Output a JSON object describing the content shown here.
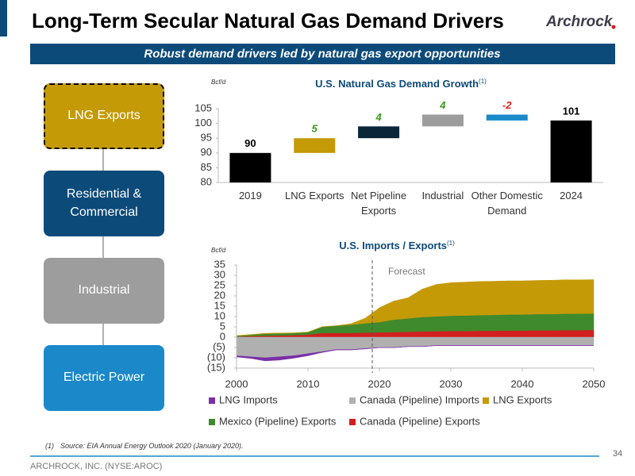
{
  "header": {
    "title": "Long-Term Secular Natural Gas Demand Drivers",
    "logo": "Archrock",
    "subtitle": "Robust demand drivers led by natural gas export opportunities"
  },
  "drivers": [
    {
      "label": "LNG Exports",
      "color": "#c49a06",
      "highlighted": true
    },
    {
      "label": "Residential & Commercial",
      "color": "#0c4a7a"
    },
    {
      "label": "Industrial",
      "color": "#9d9d9d"
    },
    {
      "label": "Electric Power",
      "color": "#1a88c9"
    }
  ],
  "chart_data": [
    {
      "type": "waterfall",
      "title": "U.S. Natural Gas Demand Growth",
      "title_note": "(1)",
      "y_label": "Bcf/d",
      "categories": [
        "2019",
        "LNG Exports",
        "Net Pipeline Exports",
        "Industrial",
        "Other Domestic Demand",
        "2024"
      ],
      "values": [
        90,
        5,
        4,
        4,
        -2,
        101
      ],
      "colors": [
        "#000000",
        "#c49a06",
        "#0b2639",
        "#9d9d9d",
        "#1a88c9",
        "#000000"
      ],
      "label_colors": [
        "#000000",
        "#3a9a1a",
        "#3a9a1a",
        "#3a9a1a",
        "#e0201b",
        "#000000"
      ],
      "ylim": [
        80,
        105
      ],
      "yticks": [
        80,
        85,
        90,
        95,
        100,
        105
      ]
    },
    {
      "type": "stacked_area",
      "title": "U.S. Imports / Exports",
      "title_note": "(1)",
      "y_label": "Bcf/d",
      "x": [
        2000,
        2002,
        2004,
        2006,
        2008,
        2010,
        2012,
        2014,
        2016,
        2018,
        2020,
        2022,
        2024,
        2026,
        2028,
        2030,
        2032,
        2034,
        2036,
        2038,
        2040,
        2042,
        2044,
        2046,
        2048,
        2050
      ],
      "series": [
        {
          "name": "LNG Imports",
          "color": "#7b2fa8",
          "values": [
            -0.6,
            -0.8,
            -1.5,
            -1.6,
            -1.2,
            -1,
            -0.4,
            -0.2,
            -0.2,
            -0.2,
            -0.1,
            -0.1,
            -0.1,
            -0.1,
            -0.1,
            -0.1,
            -0.1,
            -0.1,
            -0.1,
            -0.1,
            -0.1,
            -0.1,
            -0.1,
            -0.1,
            -0.1,
            -0.1
          ]
        },
        {
          "name": "Canada (Pipeline) Imports",
          "color": "#b0b0b0",
          "values": [
            -9,
            -9.5,
            -10,
            -9.5,
            -9,
            -8,
            -7,
            -6,
            -6,
            -5.5,
            -5,
            -5,
            -4.5,
            -4.5,
            -4,
            -4,
            -4,
            -4,
            -4,
            -4,
            -4,
            -4,
            -4,
            -4,
            -4,
            -4
          ]
        },
        {
          "name": "LNG Exports",
          "color": "#c49a06",
          "values": [
            0.2,
            0.2,
            0.2,
            0.2,
            0.1,
            0.1,
            0.1,
            0.1,
            0.5,
            2.5,
            7,
            9,
            10,
            13.5,
            15.5,
            16,
            16.2,
            16.3,
            16.3,
            16.3,
            16.3,
            16.3,
            16.4,
            16.4,
            16.4,
            16.4
          ]
        },
        {
          "name": "Mexico (Pipeline) Exports",
          "color": "#3f8a2c",
          "values": [
            0.3,
            0.6,
            1,
            1,
            1,
            1.2,
            3,
            3.5,
            4,
            4.5,
            5,
            6,
            6.5,
            7,
            7.2,
            7.4,
            7.5,
            7.6,
            7.7,
            7.8,
            7.8,
            7.9,
            7.9,
            8,
            8,
            8
          ]
        },
        {
          "name": "Canada (Pipeline) Exports",
          "color": "#d21f1f",
          "values": [
            0.3,
            0.5,
            0.7,
            0.8,
            1,
            1.2,
            2,
            2,
            2,
            2.2,
            2.3,
            2.5,
            2.6,
            2.8,
            2.9,
            3,
            3,
            3.1,
            3.1,
            3.2,
            3.2,
            3.3,
            3.3,
            3.4,
            3.4,
            3.5
          ]
        }
      ],
      "ylim": [
        -15,
        35
      ],
      "yticks": [
        {
          "value": -15,
          "label": "(15)"
        },
        {
          "value": -10,
          "label": "(10)"
        },
        {
          "value": -5,
          "label": "(5)"
        },
        0,
        5,
        10,
        15,
        20,
        25,
        30,
        35
      ],
      "xlim": [
        2000,
        2050
      ],
      "xticks": [
        2000,
        2010,
        2020,
        2030,
        2040,
        2050
      ],
      "annotations": [
        {
          "text": "Forecast",
          "x": 2019
        }
      ]
    }
  ],
  "footnote": {
    "marker": "(1)",
    "text": "Source: EIA Annual Energy Outlook 2020 (January 2020)."
  },
  "footer": "ARCHROCK, INC. (NYSE:AROC)",
  "page_number": 34
}
